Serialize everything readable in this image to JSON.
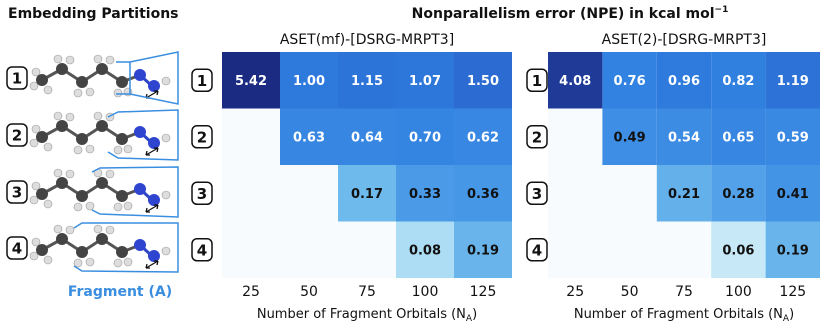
{
  "title": [
    "Nonparallelism error (NPE) in kcal mol",
    "−1"
  ],
  "left_panel": {
    "title": "Embedding Partitions",
    "rows": [
      "1",
      "2",
      "3",
      "4"
    ],
    "fragment_label": "Fragment (A)"
  },
  "chart_data": [
    {
      "type": "heatmap",
      "title": "ASET(mf)-[DSRG-MRPT3]",
      "x_label": [
        "Number of Fragment Orbitals (N",
        "A",
        ")"
      ],
      "categories": [
        "25",
        "50",
        "75",
        "100",
        "125"
      ],
      "rows": [
        "1",
        "2",
        "3",
        "4"
      ],
      "values": [
        [
          5.42,
          1.0,
          1.15,
          1.07,
          1.5
        ],
        [
          null,
          0.63,
          0.64,
          0.7,
          0.62
        ],
        [
          null,
          null,
          0.17,
          0.33,
          0.36
        ],
        [
          null,
          null,
          null,
          0.08,
          0.19
        ]
      ],
      "value_labels": [
        [
          "5.42",
          "1.00",
          "1.15",
          "1.07",
          "1.50"
        ],
        [
          null,
          "0.63",
          "0.64",
          "0.70",
          "0.62"
        ],
        [
          null,
          null,
          "0.17",
          "0.33",
          "0.36"
        ],
        [
          null,
          null,
          null,
          "0.08",
          "0.19"
        ]
      ],
      "color_scale": {
        "log": true,
        "lim": [
          0.05,
          5.5
        ],
        "colors": [
          "#d8f1f9",
          "#7fc8ee",
          "#4a9ae8",
          "#2f7fe0",
          "#2a5fc8",
          "#1a2a80"
        ]
      }
    },
    {
      "type": "heatmap",
      "title": "ASET(2)-[DSRG-MRPT3]",
      "x_label": [
        "Number of Fragment Orbitals (N",
        "A",
        ")"
      ],
      "categories": [
        "25",
        "50",
        "75",
        "100",
        "125"
      ],
      "rows": [
        "1",
        "2",
        "3",
        "4"
      ],
      "values": [
        [
          4.08,
          0.76,
          0.96,
          0.82,
          1.19
        ],
        [
          null,
          0.49,
          0.54,
          0.65,
          0.59
        ],
        [
          null,
          null,
          0.21,
          0.28,
          0.41
        ],
        [
          null,
          null,
          null,
          0.06,
          0.19
        ]
      ],
      "value_labels": [
        [
          "4.08",
          "0.76",
          "0.96",
          "0.82",
          "1.19"
        ],
        [
          null,
          "0.49",
          "0.54",
          "0.65",
          "0.59"
        ],
        [
          null,
          null,
          "0.21",
          "0.28",
          "0.41"
        ],
        [
          null,
          null,
          null,
          "0.06",
          "0.19"
        ]
      ],
      "color_scale": {
        "log": true,
        "lim": [
          0.05,
          5.5
        ],
        "colors": [
          "#d8f1f9",
          "#7fc8ee",
          "#4a9ae8",
          "#2f7fe0",
          "#2a5fc8",
          "#1a2a80"
        ]
      }
    }
  ]
}
